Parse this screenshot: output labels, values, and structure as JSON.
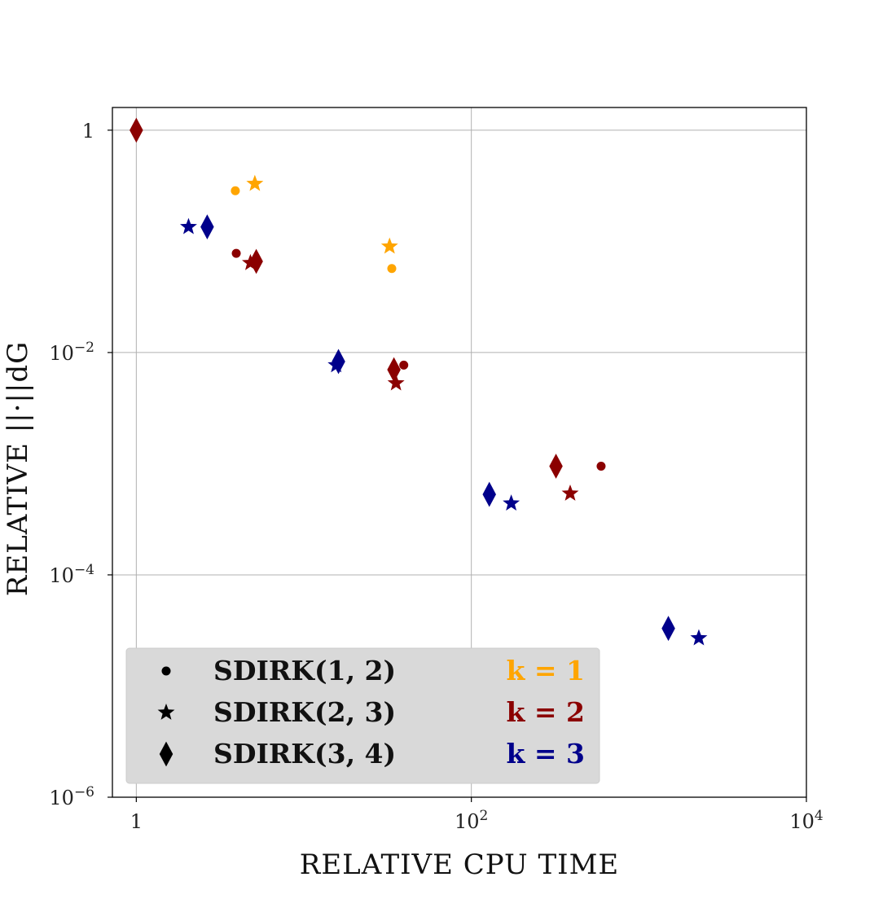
{
  "chart_data": {
    "type": "scatter",
    "xlabel": "RELATIVE CPU TIME",
    "ylabel": "RELATIVE ||·||dG",
    "xscale": "log",
    "yscale": "log",
    "xlim": [
      0.72,
      10000
    ],
    "ylim": [
      1e-06,
      1.6
    ],
    "xticks": [
      1,
      100,
      10000
    ],
    "xtick_labels": [
      "1",
      "10^2",
      "10^4"
    ],
    "yticks": [
      1,
      0.01,
      0.0001,
      1e-06
    ],
    "ytick_labels": [
      "1",
      "10^-2",
      "10^-4",
      "10^-6"
    ],
    "grid": true,
    "legend_position": "lower-left",
    "colors": {
      "k1": "#ffa500",
      "k2": "#8b0000",
      "k3": "#00008b"
    },
    "legend": {
      "markers": [
        {
          "symbol": "circle",
          "label": "SDIRK(1, 2)"
        },
        {
          "symbol": "star",
          "label": "SDIRK(2, 3)"
        },
        {
          "symbol": "diamond",
          "label": "SDIRK(3, 4)"
        }
      ],
      "k_labels": [
        {
          "label": "k = 1",
          "color": "#ffa500"
        },
        {
          "label": "k = 2",
          "color": "#8b0000"
        },
        {
          "label": "k = 3",
          "color": "#00008b"
        }
      ]
    },
    "series": [
      {
        "name": "SDIRK(1, 2)",
        "k": 1,
        "marker": "circle",
        "x": [
          3.9,
          33.5
        ],
        "y": [
          0.285,
          0.057
        ]
      },
      {
        "name": "SDIRK(2, 3)",
        "k": 1,
        "marker": "star",
        "x": [
          5.1,
          32.5
        ],
        "y": [
          0.33,
          0.09
        ]
      },
      {
        "name": "SDIRK(1, 2)",
        "k": 2,
        "marker": "circle",
        "x": [
          3.95,
          39.5,
          595
        ],
        "y": [
          0.078,
          0.0077,
          0.00095
        ]
      },
      {
        "name": "SDIRK(2, 3)",
        "k": 2,
        "marker": "star",
        "x": [
          4.8,
          35.5,
          389
        ],
        "y": [
          0.064,
          0.0053,
          0.00054
        ]
      },
      {
        "name": "SDIRK(3, 4)",
        "k": 2,
        "marker": "diamond",
        "x": [
          1.0,
          5.2,
          34.5,
          320
        ],
        "y": [
          1.0,
          0.066,
          0.007,
          0.00095
        ]
      },
      {
        "name": "SDIRK(2, 3)",
        "k": 3,
        "marker": "star",
        "x": [
          2.05,
          15.6,
          173
        ],
        "y": [
          0.135,
          0.0077,
          0.00044
        ]
      },
      {
        "name": "SDIRK(3, 4)",
        "k": 3,
        "marker": "diamond",
        "x": [
          2.65,
          16.1,
          128,
          1500
        ],
        "y": [
          0.135,
          0.0083,
          0.00053,
          3.3e-05
        ]
      },
      {
        "name": "SDIRK(2, 3)",
        "k": 3,
        "marker": "star",
        "x": [
          2280
        ],
        "y": [
          2.7e-05
        ]
      }
    ]
  }
}
